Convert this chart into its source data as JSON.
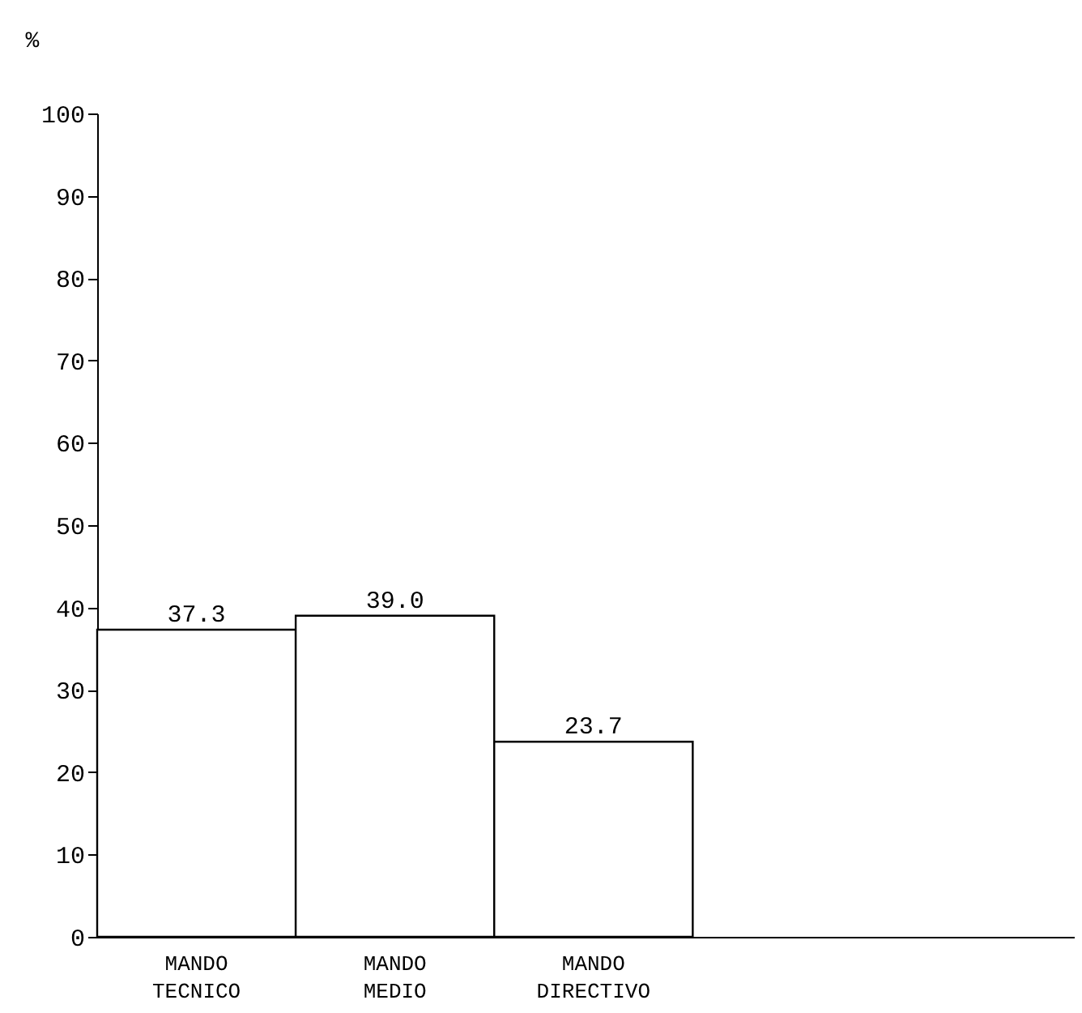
{
  "chart_data": {
    "type": "bar",
    "ylabel": "%",
    "categories": [
      "MANDO TECNICO",
      "MANDO MEDIO",
      "MANDO DIRECTIVO"
    ],
    "values": [
      37.3,
      39.0,
      23.7
    ],
    "value_labels": [
      "37.3",
      "39.0",
      "23.7"
    ],
    "color": "#ffffff",
    "ylim": [
      0,
      100
    ],
    "yticks": [
      0,
      10,
      20,
      30,
      40,
      50,
      60,
      70,
      80,
      90,
      100
    ],
    "grid": false
  }
}
